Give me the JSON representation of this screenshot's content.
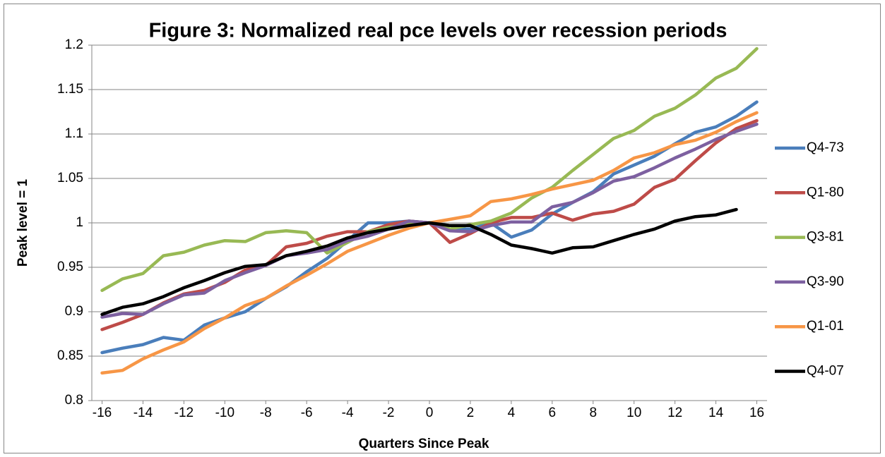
{
  "chart_data": {
    "type": "line",
    "title": "Figure 3: Normalized real pce levels over recession periods",
    "xlabel": "Quarters Since Peak",
    "ylabel": "Peak level = 1",
    "x": [
      -16,
      -15,
      -14,
      -13,
      -12,
      -11,
      -10,
      -9,
      -8,
      -7,
      -6,
      -5,
      -4,
      -3,
      -2,
      -1,
      0,
      1,
      2,
      3,
      4,
      5,
      6,
      7,
      8,
      9,
      10,
      11,
      12,
      13,
      14,
      15,
      16
    ],
    "xlim": [
      -16.5,
      16.5
    ],
    "xticks": [
      -16,
      -14,
      -12,
      -10,
      -8,
      -6,
      -4,
      -2,
      0,
      2,
      4,
      6,
      8,
      10,
      12,
      14,
      16
    ],
    "ylim": [
      0.8,
      1.2
    ],
    "yticks": [
      0.8,
      0.85,
      0.9,
      0.95,
      1,
      1.05,
      1.1,
      1.15,
      1.2
    ],
    "grid": true,
    "legend": "right",
    "series": [
      {
        "name": "Q4-73",
        "color": "#4a7ebb",
        "values": [
          0.854,
          0.859,
          0.863,
          0.871,
          0.868,
          0.885,
          0.893,
          0.9,
          0.915,
          0.928,
          0.945,
          0.96,
          0.98,
          1.0,
          1.0,
          1.002,
          1.0,
          0.993,
          0.993,
          1.0,
          0.984,
          0.992,
          1.01,
          1.023,
          1.035,
          1.055,
          1.065,
          1.075,
          1.089,
          1.102,
          1.108,
          1.12,
          1.136
        ]
      },
      {
        "name": "Q1-80",
        "color": "#be4b48",
        "values": [
          0.88,
          0.888,
          0.897,
          0.91,
          0.92,
          0.924,
          0.933,
          0.947,
          0.952,
          0.973,
          0.977,
          0.985,
          0.99,
          0.99,
          0.998,
          1.002,
          1.0,
          0.978,
          0.988,
          1.0,
          1.006,
          1.006,
          1.011,
          1.003,
          1.01,
          1.013,
          1.021,
          1.04,
          1.049,
          1.07,
          1.09,
          1.106,
          1.115
        ]
      },
      {
        "name": "Q3-81",
        "color": "#98b954",
        "values": [
          0.924,
          0.937,
          0.943,
          0.963,
          0.967,
          0.975,
          0.98,
          0.979,
          0.989,
          0.991,
          0.989,
          0.966,
          0.978,
          0.99,
          0.995,
          0.998,
          1.0,
          0.993,
          0.998,
          1.002,
          1.011,
          1.028,
          1.04,
          1.059,
          1.077,
          1.095,
          1.104,
          1.12,
          1.129,
          1.144,
          1.163,
          1.174,
          1.196
        ]
      },
      {
        "name": "Q3-90",
        "color": "#7d60a0",
        "values": [
          0.894,
          0.898,
          0.897,
          0.909,
          0.919,
          0.921,
          0.935,
          0.944,
          0.952,
          0.963,
          0.966,
          0.97,
          0.98,
          0.985,
          0.993,
          1.002,
          1.0,
          0.991,
          0.99,
          0.997,
          1.001,
          1.001,
          1.018,
          1.023,
          1.034,
          1.047,
          1.052,
          1.062,
          1.073,
          1.083,
          1.094,
          1.103,
          1.111
        ]
      },
      {
        "name": "Q1-01",
        "color": "#f79646",
        "values": [
          0.831,
          0.834,
          0.847,
          0.857,
          0.866,
          0.881,
          0.893,
          0.907,
          0.915,
          0.929,
          0.941,
          0.954,
          0.968,
          0.977,
          0.986,
          0.994,
          1.0,
          1.004,
          1.008,
          1.024,
          1.027,
          1.032,
          1.038,
          1.043,
          1.048,
          1.059,
          1.073,
          1.079,
          1.088,
          1.093,
          1.102,
          1.114,
          1.124
        ]
      },
      {
        "name": "Q4-07",
        "color": "#000000",
        "values": [
          0.897,
          0.905,
          0.909,
          0.917,
          0.927,
          0.935,
          0.944,
          0.951,
          0.953,
          0.963,
          0.968,
          0.974,
          0.983,
          0.989,
          0.993,
          0.997,
          1.0,
          0.997,
          0.997,
          0.987,
          0.975,
          0.971,
          0.966,
          0.972,
          0.973,
          0.98,
          0.987,
          0.993,
          1.002,
          1.007,
          1.009,
          1.015,
          null
        ]
      }
    ]
  }
}
